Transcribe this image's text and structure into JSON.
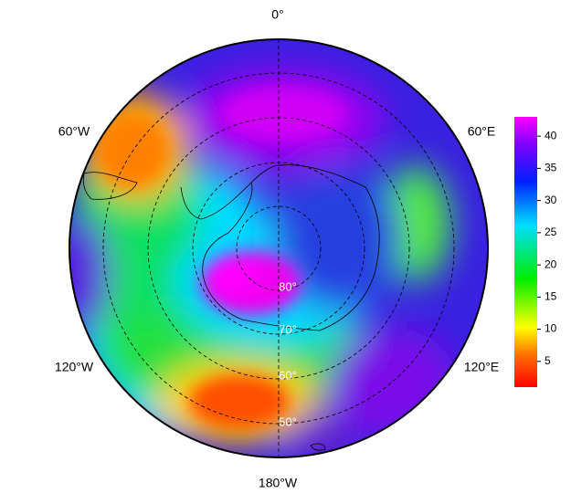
{
  "map": {
    "longitude_labels": {
      "top": "0°",
      "upper_right": "60°E",
      "lower_right": "120°E",
      "bottom": "180°W",
      "lower_left": "120°W",
      "upper_left": "60°W"
    },
    "latitude_labels": [
      "80°",
      "70°",
      "60°",
      "50°"
    ],
    "colorbar": {
      "range": [
        1,
        43
      ],
      "ticks": [
        5,
        10,
        15,
        20,
        25,
        30,
        35,
        40
      ]
    }
  }
}
